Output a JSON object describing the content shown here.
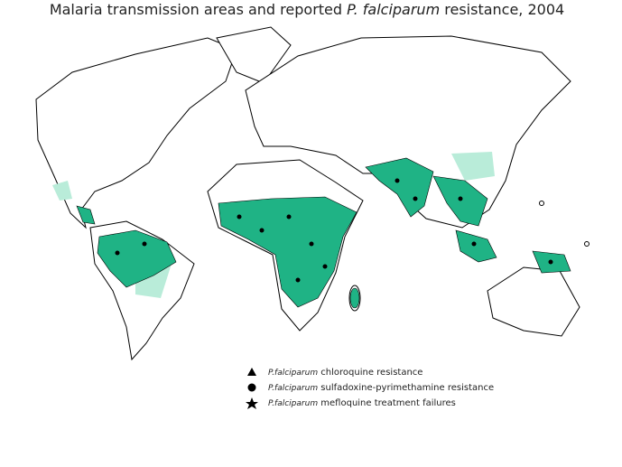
{
  "title": {
    "before": "Malaria transmission areas and reported",
    "italic": "P. falciparum",
    "after": "resistance, 2004"
  },
  "legend": [
    {
      "species": "P.falciparum",
      "text": "chloroquine resistance"
    },
    {
      "species": "P.falciparum",
      "text": "sulfadoxine-pyrimethamine resistance"
    },
    {
      "species": "P.falciparum",
      "text": "mefloquine treatment failures"
    }
  ]
}
